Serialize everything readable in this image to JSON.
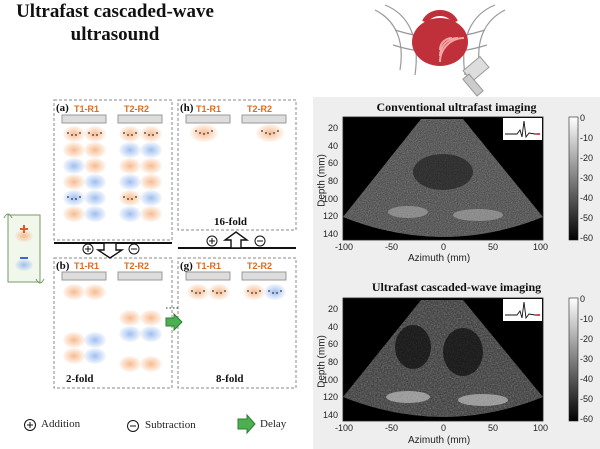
{
  "title_line1": "Ultrafast cascaded-wave",
  "title_line2": "ultrasound",
  "panels": {
    "a": "(a)",
    "b": "(b)",
    "g": "(g)",
    "h": "(h)"
  },
  "tx": {
    "t1": "T1-R1",
    "t2": "T2-R2"
  },
  "folds": {
    "b": "2-fold",
    "g": "8-fold",
    "h": "16-fold"
  },
  "legend": {
    "addition": "Addition",
    "subtraction": "Subtraction",
    "delay": "Delay"
  },
  "images": {
    "conventional_title": "Conventional ultrafast imaging",
    "cascaded_title": "Ultrafast cascaded-wave imaging",
    "ylabel": "Depth (mm)",
    "xlabel": "Azimuth (mm)",
    "yticks": [
      "20",
      "40",
      "60",
      "80",
      "100",
      "120",
      "140"
    ],
    "xticks": [
      "-100",
      "-50",
      "0",
      "50",
      "100"
    ],
    "cticks": [
      "0",
      "-10",
      "-20",
      "-30",
      "-40",
      "-50",
      "-60"
    ]
  },
  "colors": {
    "orange": "#f4a66a",
    "blue": "#8fb4ec",
    "arrow_green": "#4caf50",
    "label_orange": "#e06a1a"
  }
}
